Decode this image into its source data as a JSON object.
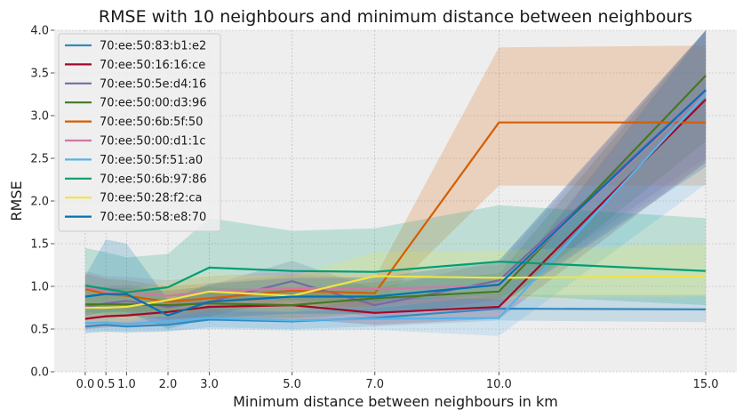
{
  "chart_data": {
    "type": "line",
    "title": "RMSE with 10 neighbours and minimum distance between neighbours",
    "xlabel": "Minimum distance between neighbours in km",
    "ylabel": "RMSE",
    "x": [
      0.0,
      0.5,
      1.0,
      2.0,
      3.0,
      5.0,
      7.0,
      10.0,
      15.0
    ],
    "x_tick_labels": [
      "0.0",
      "0.5",
      "1.0",
      "2.0",
      "3.0",
      "5.0",
      "7.0",
      "10.0",
      "15.0"
    ],
    "ylim": [
      0.0,
      4.0
    ],
    "y_ticks": [
      0.0,
      0.5,
      1.0,
      1.5,
      2.0,
      2.5,
      3.0,
      3.5,
      4.0
    ],
    "y_tick_labels": [
      "0.0",
      "0.5",
      "1.0",
      "1.5",
      "2.0",
      "2.5",
      "3.0",
      "3.5",
      "4.0"
    ],
    "grid": true,
    "legend_position": "top-left",
    "style": "bmh",
    "series": [
      {
        "name": "70:ee:50:83:b1:e2",
        "color": "#348ABD",
        "values": [
          0.53,
          0.55,
          0.53,
          0.55,
          0.61,
          0.59,
          0.63,
          0.74,
          0.73
        ],
        "lower": [
          0.45,
          0.47,
          0.46,
          0.47,
          0.52,
          0.5,
          0.53,
          0.6,
          0.58
        ],
        "upper": [
          0.62,
          0.64,
          0.62,
          0.64,
          0.71,
          0.7,
          0.74,
          0.9,
          0.9
        ]
      },
      {
        "name": "70:ee:50:16:16:ce",
        "color": "#A60628",
        "values": [
          0.62,
          0.65,
          0.66,
          0.7,
          0.76,
          0.78,
          0.69,
          0.76,
          3.19
        ],
        "lower": [
          0.5,
          0.52,
          0.53,
          0.56,
          0.61,
          0.62,
          0.55,
          0.62,
          2.45
        ],
        "upper": [
          0.76,
          0.79,
          0.8,
          0.86,
          0.93,
          0.96,
          0.85,
          0.92,
          4.0
        ]
      },
      {
        "name": "70:ee:50:5e:d4:16",
        "color": "#7A68A6",
        "values": [
          0.76,
          0.8,
          0.83,
          0.76,
          0.82,
          1.06,
          0.78,
          1.07,
          3.3
        ],
        "lower": [
          0.6,
          0.64,
          0.67,
          0.6,
          0.65,
          0.85,
          0.62,
          0.85,
          2.5
        ],
        "upper": [
          0.95,
          1.0,
          1.02,
          0.94,
          1.01,
          1.3,
          0.97,
          1.3,
          4.0
        ]
      },
      {
        "name": "70:ee:50:00:d3:96",
        "color": "#467821",
        "values": [
          0.79,
          0.79,
          0.79,
          0.78,
          0.8,
          0.78,
          0.86,
          0.94,
          3.47
        ],
        "lower": [
          0.63,
          0.63,
          0.63,
          0.62,
          0.64,
          0.62,
          0.69,
          0.75,
          2.7
        ],
        "upper": [
          0.98,
          0.98,
          0.98,
          0.96,
          0.99,
          0.96,
          1.05,
          1.15,
          4.0
        ]
      },
      {
        "name": "70:ee:50:6b:5f:50",
        "color": "#D55E00",
        "values": [
          0.97,
          0.91,
          0.89,
          0.82,
          0.86,
          0.95,
          0.92,
          2.92,
          2.92
        ],
        "lower": [
          0.8,
          0.74,
          0.72,
          0.66,
          0.7,
          0.78,
          0.75,
          2.18,
          2.18
        ],
        "upper": [
          1.15,
          1.09,
          1.07,
          1.0,
          1.04,
          1.14,
          1.1,
          3.8,
          3.82
        ]
      },
      {
        "name": "70:ee:50:00:d1:1c",
        "color": "#CC79A7",
        "values": [
          0.99,
          0.94,
          0.93,
          0.89,
          0.94,
          0.98,
          0.97,
          1.01,
          3.28
        ],
        "lower": [
          0.82,
          0.77,
          0.76,
          0.72,
          0.77,
          0.8,
          0.79,
          0.8,
          2.45
        ],
        "upper": [
          1.18,
          1.12,
          1.11,
          1.07,
          1.12,
          1.17,
          1.16,
          1.25,
          4.0
        ]
      },
      {
        "name": "70:ee:50:5f:51:a0",
        "color": "#56B4E9",
        "values": [
          0.57,
          0.58,
          0.56,
          0.59,
          0.63,
          0.6,
          0.62,
          0.63,
          3.25
        ],
        "lower": [
          0.46,
          0.47,
          0.46,
          0.48,
          0.5,
          0.48,
          0.49,
          0.42,
          2.2
        ],
        "upper": [
          0.7,
          0.72,
          0.7,
          0.73,
          0.77,
          0.74,
          0.77,
          0.86,
          4.0
        ]
      },
      {
        "name": "70:ee:50:6b:97:86",
        "color": "#009E73",
        "values": [
          1.01,
          0.97,
          0.93,
          0.99,
          1.22,
          1.18,
          1.17,
          1.29,
          1.18
        ],
        "lower": [
          0.7,
          0.68,
          0.66,
          0.7,
          0.86,
          0.83,
          0.82,
          0.9,
          0.78
        ],
        "upper": [
          1.45,
          1.4,
          1.34,
          1.38,
          1.8,
          1.65,
          1.68,
          1.95,
          1.8
        ]
      },
      {
        "name": "70:ee:50:28:f2:ca",
        "color": "#F0E442",
        "values": [
          0.75,
          0.75,
          0.76,
          0.84,
          0.94,
          0.89,
          1.12,
          1.1,
          1.12
        ],
        "lower": [
          0.58,
          0.58,
          0.59,
          0.66,
          0.75,
          0.7,
          0.88,
          0.85,
          0.88
        ],
        "upper": [
          0.95,
          0.95,
          0.96,
          1.05,
          1.15,
          1.12,
          1.4,
          1.42,
          1.5
        ]
      },
      {
        "name": "70:ee:50:58:e8:70",
        "color": "#0072B2",
        "values": [
          0.88,
          0.91,
          0.91,
          0.66,
          0.82,
          0.88,
          0.88,
          1.02,
          3.3
        ],
        "lower": [
          0.66,
          0.7,
          0.7,
          0.5,
          0.63,
          0.68,
          0.68,
          0.78,
          2.4
        ],
        "upper": [
          1.12,
          1.55,
          1.5,
          0.84,
          1.03,
          1.1,
          1.1,
          1.3,
          4.0
        ]
      }
    ]
  }
}
